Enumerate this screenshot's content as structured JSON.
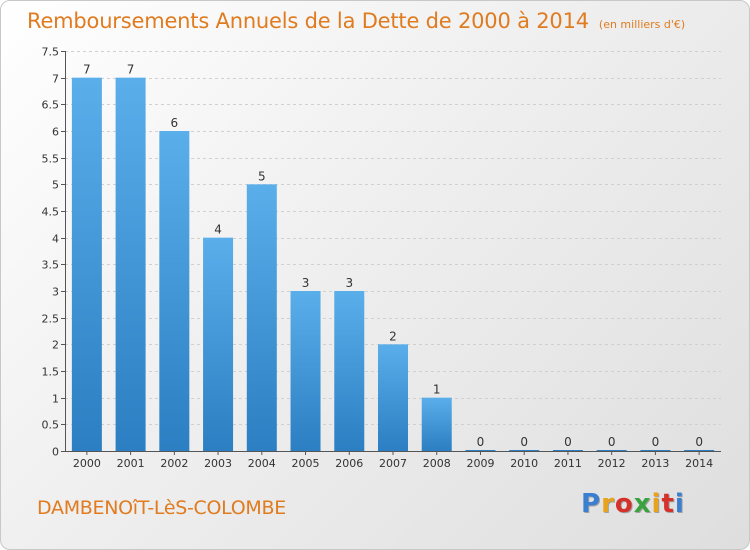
{
  "header": {
    "title": "Remboursements Annuels de la Dette de 2000 à 2014",
    "subtitle": "(en milliers d'€)"
  },
  "footer": {
    "commune": "DAMBENOîT-LèS-COLOMBE",
    "logo_letters": [
      "P",
      "r",
      "o",
      "x",
      "i",
      "t",
      "i"
    ],
    "logo_colors": [
      "#3a7fd0",
      "#e8a21c",
      "#d6302b",
      "#3aa340",
      "#e8a21c",
      "#d6302b",
      "#3a7fd0"
    ]
  },
  "chart_data": {
    "type": "bar",
    "title": "Remboursements Annuels de la Dette de 2000 à 2014",
    "xlabel": "",
    "ylabel": "",
    "categories": [
      "2000",
      "2001",
      "2002",
      "2003",
      "2004",
      "2005",
      "2006",
      "2007",
      "2008",
      "2009",
      "2010",
      "2011",
      "2012",
      "2013",
      "2014"
    ],
    "values": [
      7,
      7,
      6,
      4,
      5,
      3,
      3,
      2,
      1,
      0,
      0,
      0,
      0,
      0,
      0
    ],
    "data_labels": [
      "7",
      "7",
      "6",
      "4",
      "5",
      "3",
      "3",
      "2",
      "1",
      "0",
      "0",
      "0",
      "0",
      "0",
      "0"
    ],
    "ylim": [
      0,
      7.5
    ],
    "yticks": [
      "0",
      "0.5",
      "1",
      "1.5",
      "2",
      "2.5",
      "3",
      "3.5",
      "4",
      "4.5",
      "5",
      "5.5",
      "6",
      "6.5",
      "7",
      "7.5"
    ],
    "ytick_values": [
      0,
      0.5,
      1,
      1.5,
      2,
      2.5,
      3,
      3.5,
      4,
      4.5,
      5,
      5.5,
      6,
      6.5,
      7,
      7.5
    ],
    "grid": true,
    "bar_color_top": "#5aaeea",
    "bar_color_bottom": "#2b7fc2"
  }
}
